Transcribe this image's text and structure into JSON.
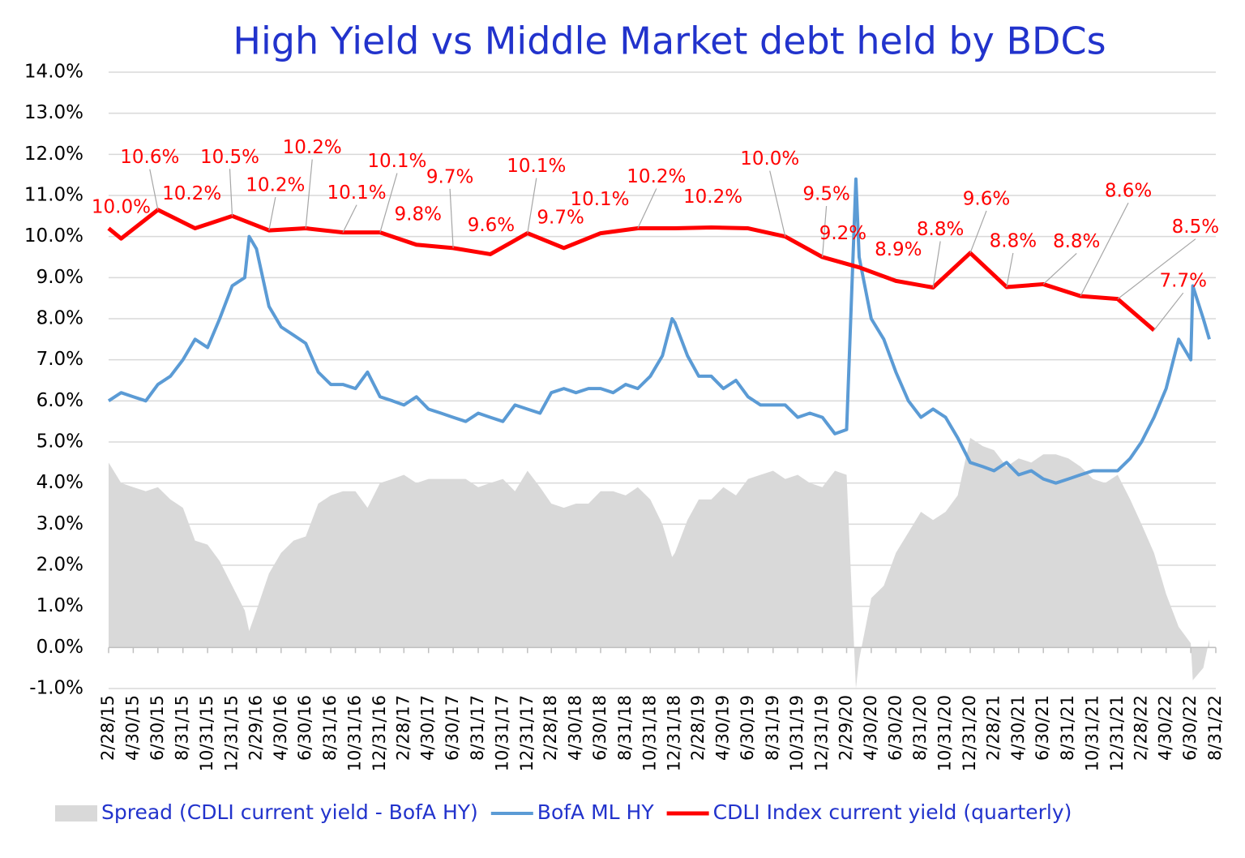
{
  "chart_data": {
    "type": "line",
    "title": "High Yield  vs  Middle Market debt held by BDCs",
    "ylim": [
      -1,
      14
    ],
    "yticks": [
      {
        "value": -1,
        "label": "-1.0%"
      },
      {
        "value": 0,
        "label": "0.0%"
      },
      {
        "value": 1,
        "label": "1.0%"
      },
      {
        "value": 2,
        "label": "2.0%"
      },
      {
        "value": 3,
        "label": "3.0%"
      },
      {
        "value": 4,
        "label": "4.0%"
      },
      {
        "value": 5,
        "label": "5.0%"
      },
      {
        "value": 6,
        "label": "6.0%"
      },
      {
        "value": 7,
        "label": "7.0%"
      },
      {
        "value": 8,
        "label": "8.0%"
      },
      {
        "value": 9,
        "label": "9.0%"
      },
      {
        "value": 10,
        "label": "10.0%"
      },
      {
        "value": 11,
        "label": "11.0%"
      },
      {
        "value": 12,
        "label": "12.0%"
      },
      {
        "value": 13,
        "label": "13.0%"
      },
      {
        "value": 14,
        "label": "14.0%"
      }
    ],
    "xlim": [
      "2/28/15",
      "8/31/22"
    ],
    "xticks": [
      "2/28/15",
      "4/30/15",
      "6/30/15",
      "8/31/15",
      "10/31/15",
      "12/31/15",
      "2/29/16",
      "4/30/16",
      "6/30/16",
      "8/31/16",
      "10/31/16",
      "12/31/16",
      "2/28/17",
      "4/30/17",
      "6/30/17",
      "8/31/17",
      "10/31/17",
      "12/31/17",
      "2/28/18",
      "4/30/18",
      "6/30/18",
      "8/31/18",
      "10/31/18",
      "12/31/18",
      "2/28/19",
      "4/30/19",
      "6/30/19",
      "8/31/19",
      "10/31/19",
      "12/31/19",
      "2/29/20",
      "4/30/20",
      "6/30/20",
      "8/31/20",
      "10/31/20",
      "12/31/20",
      "2/28/21",
      "4/30/21",
      "6/30/21",
      "8/31/21",
      "10/31/21",
      "12/31/21",
      "2/28/22",
      "4/30/22",
      "6/30/22",
      "8/31/22"
    ],
    "grid": true,
    "legend": "bottom",
    "x": [
      "2/28/15",
      "3/31/15",
      "4/30/15",
      "5/31/15",
      "6/30/15",
      "7/31/15",
      "8/31/15",
      "9/30/15",
      "10/31/15",
      "11/30/15",
      "12/31/15",
      "1/31/16",
      "2/11/16",
      "2/29/16",
      "3/31/16",
      "4/30/16",
      "5/31/16",
      "6/30/16",
      "7/31/16",
      "8/31/16",
      "9/30/16",
      "10/31/16",
      "11/30/16",
      "12/31/16",
      "1/31/17",
      "2/28/17",
      "3/31/17",
      "4/30/17",
      "5/31/17",
      "6/30/17",
      "7/31/17",
      "8/31/17",
      "9/30/17",
      "10/31/17",
      "11/30/17",
      "12/31/17",
      "1/31/18",
      "2/28/18",
      "3/31/18",
      "4/30/18",
      "5/31/18",
      "6/30/18",
      "7/31/18",
      "8/31/18",
      "9/30/18",
      "10/31/18",
      "11/30/18",
      "12/24/18",
      "12/31/18",
      "1/31/19",
      "2/28/19",
      "3/31/19",
      "4/30/19",
      "5/31/19",
      "6/30/19",
      "7/31/19",
      "8/31/19",
      "9/30/19",
      "10/31/19",
      "11/30/19",
      "12/31/19",
      "1/31/20",
      "2/29/20",
      "3/23/20",
      "3/31/20",
      "4/30/20",
      "5/31/20",
      "6/30/20",
      "7/31/20",
      "8/31/20",
      "9/30/20",
      "10/31/20",
      "11/30/20",
      "12/31/20",
      "1/31/21",
      "2/28/21",
      "3/31/21",
      "4/30/21",
      "5/31/21",
      "6/30/21",
      "7/31/21",
      "8/31/21",
      "9/30/21",
      "10/31/21",
      "11/30/21",
      "12/31/21",
      "1/31/22",
      "2/28/22",
      "3/31/22",
      "4/30/22",
      "5/31/22",
      "6/30/22",
      "7/5/22",
      "7/31/22",
      "8/15/22"
    ],
    "series": [
      {
        "name": "Spread (CDLI current yield - BofA HY)",
        "type": "area",
        "color": "#d9d9d9",
        "values": [
          4.5,
          4.0,
          3.9,
          3.8,
          3.9,
          3.6,
          3.4,
          2.6,
          2.5,
          2.1,
          1.5,
          0.9,
          0.4,
          0.9,
          1.8,
          2.3,
          2.6,
          2.7,
          3.5,
          3.7,
          3.8,
          3.8,
          3.4,
          4.0,
          4.1,
          4.2,
          4.0,
          4.1,
          4.1,
          4.1,
          4.1,
          3.9,
          4.0,
          4.1,
          3.8,
          4.3,
          3.9,
          3.5,
          3.4,
          3.5,
          3.5,
          3.8,
          3.8,
          3.7,
          3.9,
          3.6,
          3.0,
          2.2,
          2.3,
          3.1,
          3.6,
          3.6,
          3.9,
          3.7,
          4.1,
          4.2,
          4.3,
          4.1,
          4.2,
          4.0,
          3.9,
          4.3,
          4.2,
          -1.0,
          -0.3,
          1.2,
          1.5,
          2.3,
          2.8,
          3.3,
          3.1,
          3.3,
          3.7,
          5.1,
          4.9,
          4.8,
          4.4,
          4.6,
          4.5,
          4.7,
          4.7,
          4.6,
          4.4,
          4.1,
          4.0,
          4.2,
          3.6,
          3.0,
          2.3,
          1.3,
          0.5,
          0.1,
          -0.8,
          -0.5,
          0.2
        ]
      },
      {
        "name": "BofA ML HY",
        "type": "line",
        "color": "#5b9bd5",
        "values": [
          6.0,
          6.2,
          6.1,
          6.0,
          6.4,
          6.6,
          7.0,
          7.5,
          7.3,
          8.0,
          8.8,
          9.0,
          10.0,
          9.7,
          8.3,
          7.8,
          7.6,
          7.4,
          6.7,
          6.4,
          6.4,
          6.3,
          6.7,
          6.1,
          6.0,
          5.9,
          6.1,
          5.8,
          5.7,
          5.6,
          5.5,
          5.7,
          5.6,
          5.5,
          5.9,
          5.8,
          5.7,
          6.2,
          6.3,
          6.2,
          6.3,
          6.3,
          6.2,
          6.4,
          6.3,
          6.6,
          7.1,
          8.0,
          7.9,
          7.1,
          6.6,
          6.6,
          6.3,
          6.5,
          6.1,
          5.9,
          5.9,
          5.9,
          5.6,
          5.7,
          5.6,
          5.2,
          5.3,
          11.4,
          9.5,
          8.0,
          7.5,
          6.7,
          6.0,
          5.6,
          5.8,
          5.6,
          5.1,
          4.5,
          4.4,
          4.3,
          4.5,
          4.2,
          4.3,
          4.1,
          4.0,
          4.1,
          4.2,
          4.3,
          4.3,
          4.3,
          4.6,
          5.0,
          5.6,
          6.3,
          7.5,
          7.0,
          8.8,
          8.0,
          7.5
        ]
      },
      {
        "name": "CDLI Index current yield (quarterly)",
        "type": "line",
        "color": "#ff0000",
        "x": [
          "2/28/15",
          "3/31/15",
          "6/30/15",
          "9/30/15",
          "12/31/15",
          "3/31/16",
          "6/30/16",
          "9/30/16",
          "12/31/16",
          "3/31/17",
          "6/30/17",
          "9/30/17",
          "12/31/17",
          "3/31/18",
          "6/30/18",
          "9/30/18",
          "12/31/18",
          "3/31/19",
          "6/30/19",
          "9/30/19",
          "12/31/19",
          "3/31/20",
          "6/30/20",
          "9/30/20",
          "12/31/20",
          "3/31/21",
          "6/30/21",
          "9/30/21",
          "12/31/21",
          "3/31/22"
        ],
        "values": [
          10.2,
          9.95,
          10.65,
          10.2,
          10.5,
          10.15,
          10.2,
          10.1,
          10.1,
          9.8,
          9.72,
          9.57,
          10.08,
          9.72,
          10.08,
          10.2,
          10.2,
          10.22,
          10.2,
          10.0,
          9.5,
          9.25,
          8.92,
          8.76,
          9.6,
          8.77,
          8.84,
          8.55,
          8.48,
          7.72
        ],
        "value_labels": [
          null,
          "10.0%",
          "10.6%",
          "10.2%",
          "10.5%",
          "10.2%",
          "10.2%",
          "10.1%",
          "10.1%",
          "9.8%",
          "9.7%",
          "9.6%",
          "10.1%",
          "9.7%",
          "10.1%",
          "10.2%",
          null,
          "10.2%",
          null,
          "10.0%",
          "9.5%",
          "9.2%",
          "8.9%",
          "8.8%",
          "9.6%",
          "8.8%",
          "8.8%",
          "8.6%",
          "8.5%",
          "7.7%"
        ]
      }
    ]
  }
}
